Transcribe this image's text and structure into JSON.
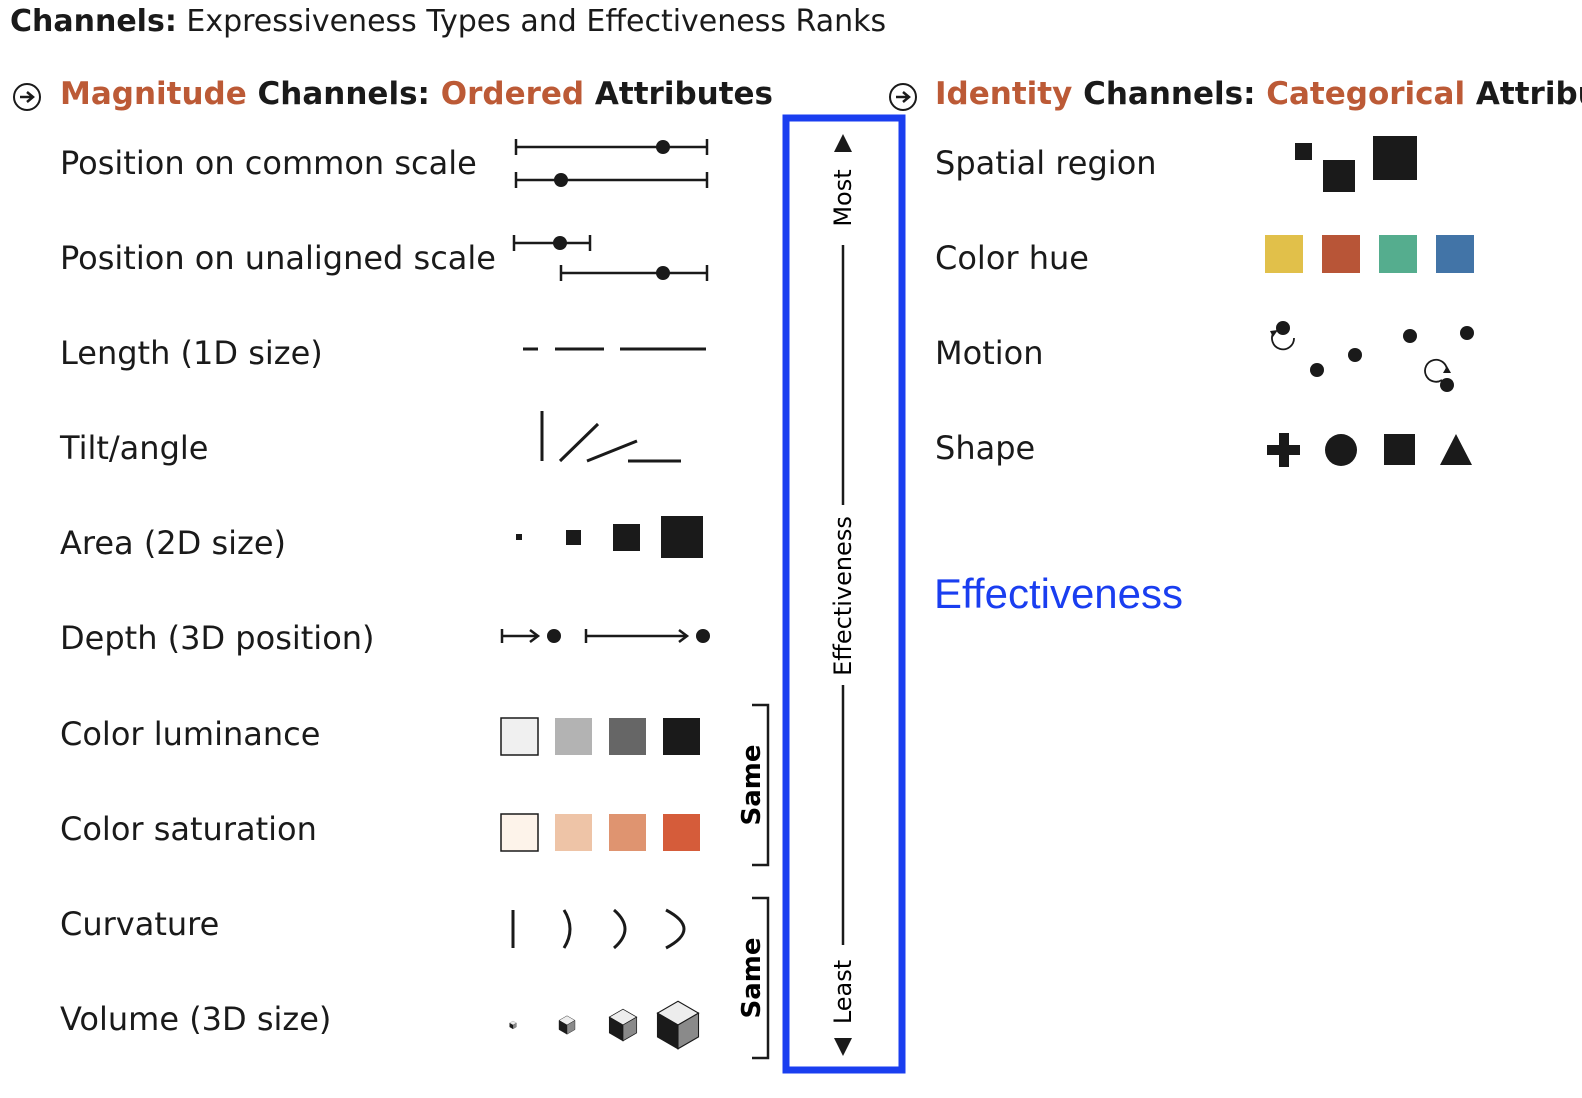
{
  "title": {
    "bold": "Channels:",
    "rest": " Expressiveness Types and Effectiveness Ranks"
  },
  "magnitude": {
    "head_a": "Magnitude",
    "head_b": " Channels: ",
    "head_c": "Ordered",
    "head_d": " Attributes",
    "rows": [
      "Position on common scale",
      "Position on unaligned scale",
      "Length (1D size)",
      "Tilt/angle",
      "Area (2D size)",
      "Depth (3D position)",
      "Color luminance",
      "Color saturation",
      "Curvature",
      "Volume (3D size)"
    ]
  },
  "identity": {
    "head_a": "Identity",
    "head_b": " Channels: ",
    "head_c": "Categorical",
    "head_d": " Attributes",
    "rows": [
      "Spatial region",
      "Color hue",
      "Motion",
      "Shape"
    ]
  },
  "scale": {
    "top": "Most",
    "middle": "Effectiveness",
    "bottom": "Least"
  },
  "brackets": {
    "first": "Same",
    "second": "Same"
  },
  "annotation": "Effectiveness",
  "colors": {
    "accent": "#bc5a36",
    "highlight_box": "#1a3ef0",
    "luminance": [
      "#f0f0f0",
      "#b3b3b3",
      "#666666",
      "#1a1a1a"
    ],
    "saturation": [
      "#fdf3ea",
      "#eec4a7",
      "#df9470",
      "#d55c3a"
    ],
    "hue": [
      "#e1c04a",
      "#b85537",
      "#55ad8e",
      "#4274a7"
    ]
  }
}
